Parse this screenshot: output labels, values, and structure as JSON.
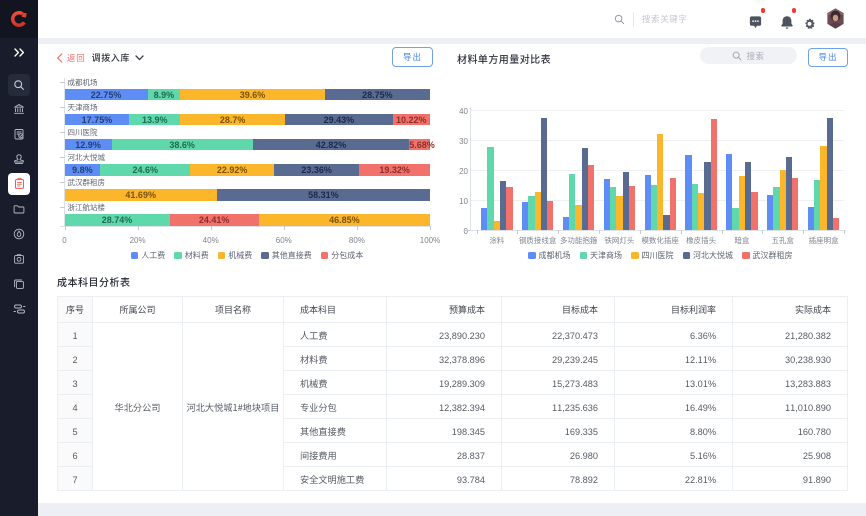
{
  "colors": {
    "series_blue": "#5E8DF5",
    "series_green": "#5FD8AC",
    "series_yellow": "#FBB62B",
    "series_slate": "#5A6B92",
    "series_red": "#F1716B",
    "accent_blue": "#4585E8",
    "back_red": "#F0736B"
  },
  "topbar": {
    "search_placeholder": "搜索关键字"
  },
  "sidebar": {
    "items": [
      "expand",
      "search",
      "bank",
      "audit",
      "stamp",
      "inventory",
      "folder",
      "drop",
      "snapshot",
      "copy",
      "transfer"
    ]
  },
  "left_panel": {
    "back_label": "返回",
    "title": "调拨入库",
    "export_label": "导出"
  },
  "right_panel": {
    "title": "材料单方用量对比表",
    "search_placeholder": "搜索",
    "export_label": "导出"
  },
  "chart_data": [
    {
      "type": "bar",
      "orientation": "horizontal",
      "stacked": true,
      "unit": "percent",
      "categories": [
        "成都机场",
        "天津商场",
        "四川医院",
        "河北大悦城",
        "武汉群租房",
        "浙江航站楼"
      ],
      "legend": [
        "人工费",
        "材料费",
        "机械费",
        "其他直接费",
        "分包成本"
      ],
      "legend_position": "bottom",
      "xlim": [
        0,
        100
      ],
      "x_ticks": [
        "0",
        "20%",
        "40%",
        "60%",
        "80%",
        "100%"
      ],
      "rows": [
        {
          "category": "成都机场",
          "segments": [
            {
              "series": "人工费",
              "value": 22.75,
              "label": "22.75%"
            },
            {
              "series": "材料费",
              "value": 8.9,
              "label": "8.9%"
            },
            {
              "series": "机械费",
              "value": 39.6,
              "label": "39.6%"
            },
            {
              "series": "其他直接费",
              "value": 28.75,
              "label": "28.75%"
            }
          ]
        },
        {
          "category": "天津商场",
          "segments": [
            {
              "series": "人工费",
              "value": 17.75,
              "label": "17.75%"
            },
            {
              "series": "材料费",
              "value": 13.9,
              "label": "13.9%"
            },
            {
              "series": "机械费",
              "value": 28.7,
              "label": "28.7%"
            },
            {
              "series": "其他直接费",
              "value": 29.43,
              "label": "29.43%"
            },
            {
              "series": "分包成本",
              "value": 10.22,
              "label": "10.22%"
            }
          ]
        },
        {
          "category": "四川医院",
          "segments": [
            {
              "series": "人工费",
              "value": 12.9,
              "label": "12.9%"
            },
            {
              "series": "材料费",
              "value": 38.6,
              "label": "38.6%"
            },
            {
              "series": "其他直接费",
              "value": 42.82,
              "label": "42.82%"
            },
            {
              "series": "分包成本",
              "value": 5.68,
              "label": "5.68%"
            }
          ]
        },
        {
          "category": "河北大悦城",
          "segments": [
            {
              "series": "人工费",
              "value": 9.8,
              "label": "9.8%"
            },
            {
              "series": "材料费",
              "value": 24.6,
              "label": "24.6%"
            },
            {
              "series": "机械费",
              "value": 22.92,
              "label": "22.92%"
            },
            {
              "series": "其他直接费",
              "value": 23.36,
              "label": "23.36%"
            },
            {
              "series": "分包成本",
              "value": 19.32,
              "label": "19.32%"
            }
          ]
        },
        {
          "category": "武汉群租房",
          "segments": [
            {
              "series": "机械费",
              "value": 41.69,
              "label": "41.69%"
            },
            {
              "series": "其他直接费",
              "value": 58.31,
              "label": "58.31%"
            }
          ]
        },
        {
          "category": "浙江航站楼",
          "segments": [
            {
              "series": "材料费",
              "value": 28.74,
              "label": "28.74%"
            },
            {
              "series": "分包成本",
              "value": 24.41,
              "label": "24.41%"
            },
            {
              "series": "机械费",
              "value": 46.85,
              "label": "46.85%"
            }
          ]
        }
      ]
    },
    {
      "type": "bar",
      "orientation": "vertical",
      "grouped": true,
      "title": "材料单方用量对比表",
      "categories": [
        "涂料",
        "钢质接线盒",
        "多功能抱箍",
        "铁网灯头",
        "模数化插座",
        "橡皮插头",
        "暗盒",
        "五孔盒",
        "插座明盒"
      ],
      "legend": [
        "成都机场",
        "天津商场",
        "四川医院",
        "河北大悦城",
        "武汉群租房"
      ],
      "legend_position": "bottom",
      "ylim": [
        0,
        40
      ],
      "y_ticks": [
        0,
        10,
        20,
        30,
        40
      ],
      "series": [
        {
          "name": "成都机场",
          "values": [
            7.5,
            9.5,
            4.2,
            17.0,
            18.3,
            25.0,
            25.3,
            11.8,
            7.6
          ]
        },
        {
          "name": "天津商场",
          "values": [
            27.6,
            11.2,
            18.6,
            14.3,
            15.0,
            15.3,
            7.2,
            14.3,
            16.8
          ]
        },
        {
          "name": "四川医院",
          "values": [
            3.1,
            12.7,
            8.2,
            11.2,
            31.9,
            12.4,
            17.9,
            19.9,
            27.9
          ]
        },
        {
          "name": "河北大悦城",
          "values": [
            16.3,
            37.5,
            27.5,
            19.4,
            5.0,
            22.7,
            22.7,
            24.5,
            37.4
          ]
        },
        {
          "name": "武汉群租房",
          "values": [
            14.2,
            9.6,
            21.6,
            14.8,
            17.3,
            37.0,
            12.7,
            17.3,
            4.0
          ]
        }
      ]
    }
  ],
  "table": {
    "title": "成本科目分析表",
    "columns": [
      "序号",
      "所属公司",
      "项目名称",
      "成本科目",
      "预算成本",
      "目标成本",
      "目标利润率",
      "实际成本"
    ],
    "company": "华北分公司",
    "project": "河北大悦城1#地块项目",
    "rows": [
      {
        "no": "1",
        "subject": "人工费",
        "budget": "23,890.230",
        "target": "22,370.473",
        "margin": "6.36%",
        "actual": "21,280.382"
      },
      {
        "no": "2",
        "subject": "材料费",
        "budget": "32,378.896",
        "target": "29,239.245",
        "margin": "12.11%",
        "actual": "30,238.930"
      },
      {
        "no": "3",
        "subject": "机械费",
        "budget": "19,289.309",
        "target": "15,273.483",
        "margin": "13.01%",
        "actual": "13,283.883"
      },
      {
        "no": "4",
        "subject": "专业分包",
        "budget": "12,382.394",
        "target": "11,235.636",
        "margin": "16.49%",
        "actual": "11,010.890"
      },
      {
        "no": "5",
        "subject": "其他直接费",
        "budget": "198.345",
        "target": "169.335",
        "margin": "8.80%",
        "actual": "160.780"
      },
      {
        "no": "6",
        "subject": "间接费用",
        "budget": "28.837",
        "target": "26.980",
        "margin": "5.16%",
        "actual": "25.908"
      },
      {
        "no": "7",
        "subject": "安全文明施工费",
        "budget": "93.784",
        "target": "78.892",
        "margin": "22.81%",
        "actual": "91.890"
      }
    ]
  }
}
